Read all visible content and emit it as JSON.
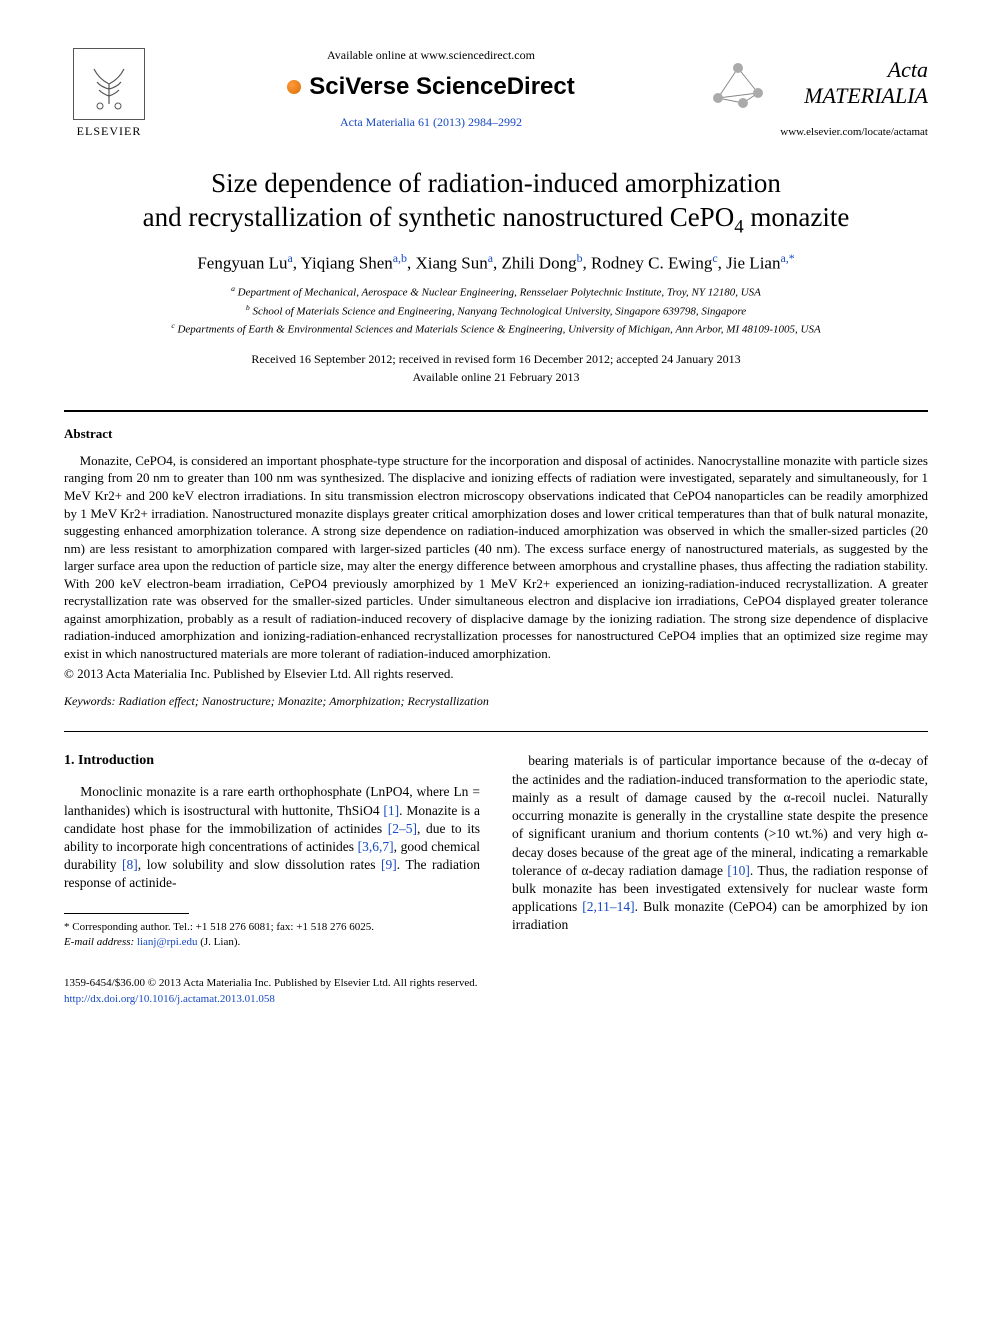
{
  "header": {
    "publisher_label": "ELSEVIER",
    "available_line": "Available online at www.sciencedirect.com",
    "platform_name": "SciVerse ScienceDirect",
    "citation": "Acta Materialia 61 (2013) 2984–2992",
    "journal_name": "Acta MATERIALIA",
    "journal_url": "www.elsevier.com/locate/actamat"
  },
  "title_line1": "Size dependence of radiation-induced amorphization",
  "title_line2_pre": "and recrystallization of synthetic nanostructured CePO",
  "title_line2_sub": "4",
  "title_line2_post": " monazite",
  "authors": [
    {
      "name": "Fengyuan Lu",
      "aff": "a"
    },
    {
      "name": "Yiqiang Shen",
      "aff": "a,b"
    },
    {
      "name": "Xiang Sun",
      "aff": "a"
    },
    {
      "name": "Zhili Dong",
      "aff": "b"
    },
    {
      "name": "Rodney C. Ewing",
      "aff": "c"
    },
    {
      "name": "Jie Lian",
      "aff": "a,*"
    }
  ],
  "affiliations": {
    "a": "Department of Mechanical, Aerospace & Nuclear Engineering, Rensselaer Polytechnic Institute, Troy, NY 12180, USA",
    "b": "School of Materials Science and Engineering, Nanyang Technological University, Singapore 639798, Singapore",
    "c": "Departments of Earth & Environmental Sciences and Materials Science & Engineering, University of Michigan, Ann Arbor, MI 48109-1005, USA"
  },
  "dates": {
    "line1": "Received 16 September 2012; received in revised form 16 December 2012; accepted 24 January 2013",
    "line2": "Available online 21 February 2013"
  },
  "abstract_label": "Abstract",
  "abstract_text": "Monazite, CePO4, is considered an important phosphate-type structure for the incorporation and disposal of actinides. Nanocrystalline monazite with particle sizes ranging from 20 nm to greater than 100 nm was synthesized. The displacive and ionizing effects of radiation were investigated, separately and simultaneously, for 1 MeV Kr2+ and 200 keV electron irradiations. In situ transmission electron microscopy observations indicated that CePO4 nanoparticles can be readily amorphized by 1 MeV Kr2+ irradiation. Nanostructured monazite displays greater critical amorphization doses and lower critical temperatures than that of bulk natural monazite, suggesting enhanced amorphization tolerance. A strong size dependence on radiation-induced amorphization was observed in which the smaller-sized particles (20 nm) are less resistant to amorphization compared with larger-sized particles (40 nm). The excess surface energy of nanostructured materials, as suggested by the larger surface area upon the reduction of particle size, may alter the energy difference between amorphous and crystalline phases, thus affecting the radiation stability. With 200 keV electron-beam irradiation, CePO4 previously amorphized by 1 MeV Kr2+ experienced an ionizing-radiation-induced recrystallization. A greater recrystallization rate was observed for the smaller-sized particles. Under simultaneous electron and displacive ion irradiations, CePO4 displayed greater tolerance against amorphization, probably as a result of radiation-induced recovery of displacive damage by the ionizing radiation. The strong size dependence of displacive radiation-induced amorphization and ionizing-radiation-enhanced recrystallization processes for nanostructured CePO4 implies that an optimized size regime may exist in which nanostructured materials are more tolerant of radiation-induced amorphization.",
  "abstract_copyright": "© 2013 Acta Materialia Inc. Published by Elsevier Ltd. All rights reserved.",
  "keywords_label": "Keywords:",
  "keywords": "Radiation effect; Nanostructure; Monazite; Amorphization; Recrystallization",
  "section1_title": "1. Introduction",
  "col_left_p1": "Monoclinic monazite is a rare earth orthophosphate (LnPO4, where Ln = lanthanides) which is isostructural with huttonite, ThSiO4 [1]. Monazite is a candidate host phase for the immobilization of actinides [2–5], due to its ability to incorporate high concentrations of actinides [3,6,7], good chemical durability [8], low solubility and slow dissolution rates [9]. The radiation response of actinide-",
  "col_right_p1": "bearing materials is of particular importance because of the α-decay of the actinides and the radiation-induced transformation to the aperiodic state, mainly as a result of damage caused by the α-recoil nuclei. Naturally occurring monazite is generally in the crystalline state despite the presence of significant uranium and thorium contents (>10 wt.%) and very high α-decay doses because of the great age of the mineral, indicating a remarkable tolerance of α-decay radiation damage [10]. Thus, the radiation response of bulk monazite has been investigated extensively for nuclear waste form applications [2,11–14]. Bulk monazite (CePO4) can be amorphized by ion irradiation",
  "footnote": {
    "corr": "* Corresponding author. Tel.: +1 518 276 6081; fax: +1 518 276 6025.",
    "email_label": "E-mail address:",
    "email": "lianj@rpi.edu",
    "email_name": "(J. Lian)."
  },
  "footer": {
    "line1": "1359-6454/$36.00 © 2013 Acta Materialia Inc. Published by Elsevier Ltd. All rights reserved.",
    "doi": "http://dx.doi.org/10.1016/j.actamat.2013.01.058"
  },
  "colors": {
    "link": "#1649c2",
    "text": "#000000",
    "background": "#ffffff"
  }
}
